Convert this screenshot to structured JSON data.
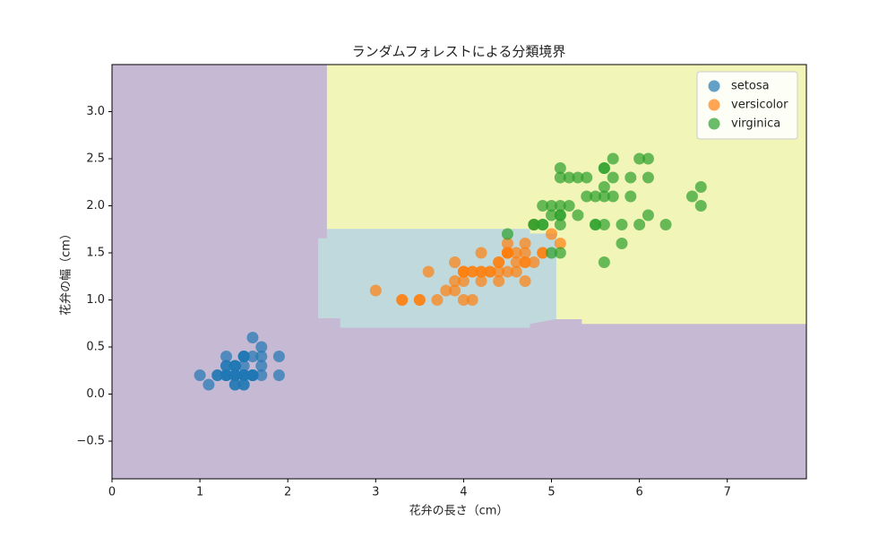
{
  "chart_data": {
    "type": "scatter",
    "title": "ランダムフォレストによる分類境界",
    "x_label": "花弁の長さ（cm）",
    "y_label": "花弁の幅（cm）",
    "xlim": [
      0,
      7.9
    ],
    "ylim": [
      -0.9,
      3.5
    ],
    "xticks": [
      0,
      1,
      2,
      3,
      4,
      5,
      6,
      7
    ],
    "yticks": [
      {
        "value": -0.5,
        "label": "−0.5"
      },
      {
        "value": 0,
        "label": "0.0"
      },
      0.5,
      {
        "value": 1,
        "label": "1.0"
      },
      1.5,
      {
        "value": 2,
        "label": "2.0"
      },
      2.5,
      {
        "value": 3,
        "label": "3.0"
      }
    ],
    "legend": "upper right",
    "regions": [
      {
        "color": "#c6b9d3",
        "x": [
          0,
          7.9,
          7.9,
          0
        ],
        "y": [
          -0.9,
          -0.9,
          3.5,
          3.5
        ]
      },
      {
        "color": "#f2f5b8",
        "x": [
          2.45,
          7.9,
          7.9,
          5.35,
          5.35,
          5.05,
          5.05,
          4.75,
          4.75,
          2.45
        ],
        "y": [
          3.5,
          3.5,
          0.75,
          0.75,
          0.8,
          0.8,
          1.7,
          1.7,
          1.75,
          1.75
        ]
      },
      {
        "color": "#bfd9dd",
        "x": [
          2.45,
          4.75,
          4.75,
          5.05,
          5.05,
          4.75,
          4.75,
          2.6,
          2.6,
          2.35,
          2.35,
          2.45
        ],
        "y": [
          1.75,
          1.75,
          1.7,
          1.7,
          0.8,
          0.75,
          0.71,
          0.71,
          0.81,
          0.81,
          1.65,
          1.65
        ]
      }
    ],
    "series": [
      {
        "name": "setosa",
        "color": "#1f77b4",
        "x": [
          1.4,
          1.4,
          1.3,
          1.5,
          1.4,
          1.7,
          1.4,
          1.5,
          1.4,
          1.5,
          1.5,
          1.6,
          1.4,
          1.1,
          1.2,
          1.5,
          1.3,
          1.4,
          1.7,
          1.5,
          1.7,
          1.5,
          1.0,
          1.7,
          1.9,
          1.6,
          1.6,
          1.5,
          1.4,
          1.6,
          1.6,
          1.5,
          1.5,
          1.4,
          1.5,
          1.2,
          1.3,
          1.4,
          1.3,
          1.5,
          1.3,
          1.3,
          1.3,
          1.6,
          1.9,
          1.4,
          1.6,
          1.4,
          1.5,
          1.4
        ],
        "values": [
          0.2,
          0.2,
          0.2,
          0.2,
          0.2,
          0.4,
          0.3,
          0.2,
          0.2,
          0.1,
          0.2,
          0.2,
          0.1,
          0.1,
          0.2,
          0.4,
          0.4,
          0.3,
          0.3,
          0.3,
          0.2,
          0.4,
          0.2,
          0.5,
          0.2,
          0.2,
          0.4,
          0.2,
          0.2,
          0.2,
          0.2,
          0.4,
          0.1,
          0.2,
          0.2,
          0.2,
          0.2,
          0.1,
          0.2,
          0.2,
          0.3,
          0.3,
          0.2,
          0.6,
          0.4,
          0.3,
          0.2,
          0.2,
          0.2,
          0.2
        ]
      },
      {
        "name": "versicolor",
        "color": "#ff7f0e",
        "x": [
          4.7,
          4.5,
          4.9,
          4.0,
          4.6,
          4.5,
          4.7,
          3.3,
          4.6,
          3.9,
          3.5,
          4.2,
          4.0,
          4.7,
          3.6,
          4.4,
          4.5,
          4.1,
          4.5,
          3.9,
          4.8,
          4.0,
          4.9,
          4.7,
          4.3,
          4.4,
          4.8,
          5.0,
          4.5,
          3.5,
          3.8,
          3.7,
          3.9,
          5.1,
          4.5,
          4.5,
          4.7,
          4.4,
          4.1,
          4.0,
          4.4,
          4.6,
          4.0,
          3.3,
          4.2,
          4.2,
          4.2,
          4.3,
          3.0,
          4.1
        ],
        "values": [
          1.4,
          1.5,
          1.5,
          1.3,
          1.5,
          1.3,
          1.6,
          1.0,
          1.3,
          1.4,
          1.0,
          1.5,
          1.0,
          1.4,
          1.3,
          1.4,
          1.5,
          1.0,
          1.5,
          1.1,
          1.8,
          1.3,
          1.5,
          1.2,
          1.3,
          1.4,
          1.4,
          1.7,
          1.5,
          1.0,
          1.1,
          1.0,
          1.2,
          1.6,
          1.5,
          1.6,
          1.5,
          1.3,
          1.3,
          1.3,
          1.2,
          1.4,
          1.2,
          1.0,
          1.3,
          1.2,
          1.3,
          1.3,
          1.1,
          1.3
        ]
      },
      {
        "name": "virginica",
        "color": "#2ca02c",
        "x": [
          6.0,
          5.1,
          5.9,
          5.6,
          6.6,
          4.5,
          6.3,
          5.8,
          6.1,
          5.1,
          5.3,
          5.5,
          5.0,
          5.1,
          5.3,
          5.5,
          6.7,
          5.0,
          5.7,
          4.9,
          6.7,
          4.9,
          5.7,
          6.0,
          4.8,
          4.9,
          5.6,
          5.8,
          6.1,
          5.6,
          5.1,
          5.6,
          6.1,
          5.6,
          5.5,
          4.8,
          5.4,
          5.6,
          5.1,
          5.1,
          5.9,
          5.7,
          5.2,
          5.0,
          5.2,
          5.4,
          5.1
        ],
        "values": [
          2.5,
          1.9,
          2.1,
          1.8,
          2.1,
          1.7,
          1.8,
          1.8,
          2.5,
          2.0,
          1.9,
          2.1,
          2.0,
          2.4,
          2.3,
          1.8,
          2.2,
          1.5,
          2.3,
          2.0,
          2.0,
          1.8,
          2.1,
          1.8,
          1.8,
          1.8,
          2.1,
          1.6,
          1.9,
          2.2,
          1.5,
          1.4,
          2.3,
          2.4,
          1.8,
          1.8,
          2.1,
          2.4,
          2.3,
          1.9,
          2.3,
          2.5,
          2.3,
          1.9,
          2.0,
          2.3,
          1.8
        ]
      }
    ]
  }
}
